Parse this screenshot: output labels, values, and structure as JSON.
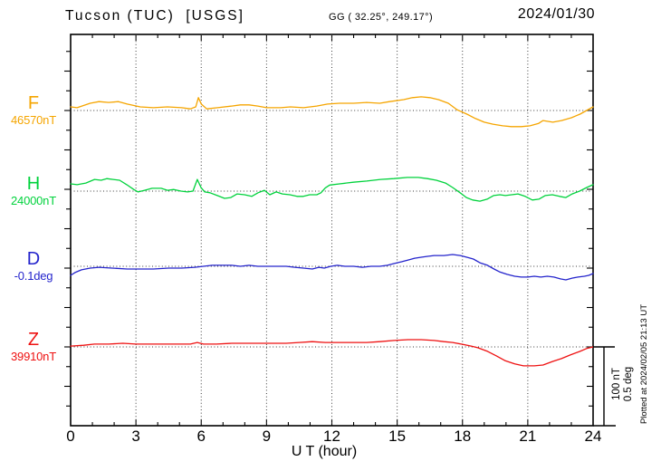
{
  "header": {
    "station_title": "Tucson (TUC)  [USGS]",
    "coordinates": "GG ( 32.25°, 249.17°)",
    "date": "2024/01/30"
  },
  "plot": {
    "x_label": "U T (hour)",
    "x_ticks": [
      "0",
      "3",
      "6",
      "9",
      "12",
      "15",
      "18",
      "21",
      "24"
    ],
    "scale_bar_nt": "100 nT",
    "scale_bar_deg": "0.5 deg",
    "plotted_note": "Plotted at 2024/02/05 21:13 UT",
    "colors": {
      "grid": "#3a3a3a",
      "axis": "#000000"
    }
  },
  "trace_labels": [
    {
      "id": "F",
      "letter": "F",
      "value": "46570nT",
      "color": "#f5a500"
    },
    {
      "id": "H",
      "letter": "H",
      "value": "24000nT",
      "color": "#00d23c"
    },
    {
      "id": "D",
      "letter": "D",
      "value": "-0.1deg",
      "color": "#2424cc"
    },
    {
      "id": "Z",
      "letter": "Z",
      "value": "39910nT",
      "color": "#ee1111"
    }
  ],
  "chart_data": {
    "type": "line",
    "title": "Tucson (TUC) [USGS] magnetogram, 2024/01/30",
    "xlabel": "U T (hour)",
    "xlim": [
      0,
      24
    ],
    "grid": "dotted vertical every 3 h, dotted baseline per trace",
    "legend_position": "left margin (F, H, D, Z)",
    "note": "points are [hour UT, offset from baseline]; baseline values shown in left margin; vertical scale 100 nT = 0.5 deg",
    "series": [
      {
        "name": "F",
        "unit": "nT",
        "baseline": 46570,
        "points": [
          [
            0,
            4.5
          ],
          [
            0.3,
            3.5
          ],
          [
            0.9,
            9
          ],
          [
            1.3,
            11
          ],
          [
            1.75,
            10
          ],
          [
            2.2,
            11
          ],
          [
            2.6,
            8
          ],
          [
            3.2,
            4.5
          ],
          [
            3.8,
            3.5
          ],
          [
            4.45,
            4.5
          ],
          [
            5.1,
            3.5
          ],
          [
            5.5,
            2
          ],
          [
            5.75,
            4.5
          ],
          [
            5.87,
            16
          ],
          [
            6.0,
            8
          ],
          [
            6.25,
            2
          ],
          [
            6.75,
            3.5
          ],
          [
            7.4,
            5.5
          ],
          [
            7.8,
            7
          ],
          [
            8.2,
            7
          ],
          [
            8.6,
            5.5
          ],
          [
            9.0,
            3.5
          ],
          [
            9.65,
            3.5
          ],
          [
            10.1,
            4.5
          ],
          [
            10.7,
            3.5
          ],
          [
            11.3,
            5.5
          ],
          [
            11.8,
            8
          ],
          [
            12.35,
            9
          ],
          [
            13.0,
            9
          ],
          [
            13.6,
            10
          ],
          [
            14.2,
            9
          ],
          [
            14.65,
            11
          ],
          [
            15.3,
            13.5
          ],
          [
            15.7,
            16
          ],
          [
            16.1,
            17
          ],
          [
            16.5,
            16
          ],
          [
            16.9,
            13.5
          ],
          [
            17.35,
            9
          ],
          [
            17.75,
            1
          ],
          [
            18.2,
            -4.5
          ],
          [
            18.6,
            -10
          ],
          [
            19.0,
            -14.5
          ],
          [
            19.4,
            -17
          ],
          [
            19.85,
            -19
          ],
          [
            20.25,
            -20
          ],
          [
            20.7,
            -20
          ],
          [
            21.1,
            -19
          ],
          [
            21.5,
            -16
          ],
          [
            21.7,
            -12.5
          ],
          [
            22.15,
            -14.5
          ],
          [
            22.55,
            -12.5
          ],
          [
            23.0,
            -9
          ],
          [
            23.4,
            -4.5
          ],
          [
            23.7,
            0
          ],
          [
            24,
            4.5
          ]
        ]
      },
      {
        "name": "H",
        "unit": "nT",
        "baseline": 24000,
        "points": [
          [
            0,
            9
          ],
          [
            0.3,
            8
          ],
          [
            0.7,
            10
          ],
          [
            1.1,
            14.5
          ],
          [
            1.4,
            13.5
          ],
          [
            1.66,
            15.5
          ],
          [
            1.95,
            14.5
          ],
          [
            2.25,
            13.5
          ],
          [
            2.58,
            8
          ],
          [
            2.9,
            2
          ],
          [
            3.1,
            -1
          ],
          [
            3.4,
            1
          ],
          [
            3.74,
            3.5
          ],
          [
            4.16,
            3.5
          ],
          [
            4.45,
            1
          ],
          [
            4.74,
            2
          ],
          [
            5.07,
            0
          ],
          [
            5.37,
            -1
          ],
          [
            5.62,
            0
          ],
          [
            5.82,
            14.5
          ],
          [
            5.99,
            4.5
          ],
          [
            6.16,
            -1
          ],
          [
            6.4,
            -2
          ],
          [
            6.74,
            -5.5
          ],
          [
            7.07,
            -9
          ],
          [
            7.36,
            -8
          ],
          [
            7.65,
            -3.5
          ],
          [
            7.99,
            -4.5
          ],
          [
            8.32,
            -6.5
          ],
          [
            8.61,
            -2
          ],
          [
            8.9,
            1
          ],
          [
            9.15,
            -4.5
          ],
          [
            9.44,
            -1
          ],
          [
            9.73,
            -3.5
          ],
          [
            10.07,
            -4.5
          ],
          [
            10.4,
            -6.5
          ],
          [
            10.69,
            -6.5
          ],
          [
            10.98,
            -4.5
          ],
          [
            11.31,
            -4.5
          ],
          [
            11.5,
            -2
          ],
          [
            11.7,
            4
          ],
          [
            11.9,
            7.5
          ],
          [
            12.35,
            9
          ],
          [
            12.98,
            11
          ],
          [
            13.6,
            12.5
          ],
          [
            14.23,
            14.5
          ],
          [
            14.85,
            15.5
          ],
          [
            15.47,
            17
          ],
          [
            15.97,
            17
          ],
          [
            16.39,
            15.5
          ],
          [
            16.8,
            13.5
          ],
          [
            17.22,
            10
          ],
          [
            17.55,
            4.5
          ],
          [
            17.89,
            -2
          ],
          [
            18.18,
            -8
          ],
          [
            18.47,
            -11
          ],
          [
            18.8,
            -12.5
          ],
          [
            19.13,
            -10
          ],
          [
            19.43,
            -5.5
          ],
          [
            19.72,
            -4.5
          ],
          [
            19.97,
            -5.5
          ],
          [
            20.26,
            -4.5
          ],
          [
            20.55,
            -3.5
          ],
          [
            20.88,
            -6.5
          ],
          [
            21.21,
            -11
          ],
          [
            21.51,
            -10
          ],
          [
            21.8,
            -5.5
          ],
          [
            22.13,
            -4.5
          ],
          [
            22.46,
            -6.5
          ],
          [
            22.75,
            -8
          ],
          [
            23.04,
            -3.5
          ],
          [
            23.38,
            0
          ],
          [
            23.71,
            4.5
          ],
          [
            24,
            8
          ]
        ]
      },
      {
        "name": "D",
        "unit": "deg",
        "baseline": -0.1,
        "points": [
          [
            0,
            -0.056
          ],
          [
            0.2,
            -0.039
          ],
          [
            0.5,
            -0.022
          ],
          [
            0.9,
            -0.011
          ],
          [
            1.3,
            -0.006
          ],
          [
            1.9,
            -0.011
          ],
          [
            2.6,
            -0.017
          ],
          [
            3.2,
            -0.017
          ],
          [
            3.8,
            -0.017
          ],
          [
            4.5,
            -0.011
          ],
          [
            5.1,
            -0.011
          ],
          [
            5.7,
            -0.006
          ],
          [
            6.1,
            0
          ],
          [
            6.5,
            0.006
          ],
          [
            7.0,
            0.006
          ],
          [
            7.4,
            0.006
          ],
          [
            7.8,
            0
          ],
          [
            8.2,
            0.006
          ],
          [
            8.6,
            0
          ],
          [
            9.0,
            0
          ],
          [
            9.4,
            0
          ],
          [
            9.9,
            0
          ],
          [
            10.3,
            -0.006
          ],
          [
            10.7,
            -0.011
          ],
          [
            11.1,
            -0.017
          ],
          [
            11.4,
            -0.006
          ],
          [
            11.65,
            -0.011
          ],
          [
            11.95,
            0
          ],
          [
            12.25,
            0.006
          ],
          [
            12.6,
            0
          ],
          [
            13.0,
            0
          ],
          [
            13.4,
            -0.006
          ],
          [
            13.8,
            0
          ],
          [
            14.2,
            0
          ],
          [
            14.55,
            0.006
          ],
          [
            14.85,
            0.017
          ],
          [
            15.2,
            0.028
          ],
          [
            15.5,
            0.039
          ],
          [
            15.8,
            0.05
          ],
          [
            16.1,
            0.056
          ],
          [
            16.4,
            0.062
          ],
          [
            16.7,
            0.067
          ],
          [
            17.15,
            0.067
          ],
          [
            17.55,
            0.073
          ],
          [
            17.9,
            0.067
          ],
          [
            18.2,
            0.056
          ],
          [
            18.5,
            0.045
          ],
          [
            18.8,
            0.022
          ],
          [
            19.15,
            0.006
          ],
          [
            19.45,
            -0.017
          ],
          [
            19.7,
            -0.034
          ],
          [
            20.05,
            -0.05
          ],
          [
            20.4,
            -0.062
          ],
          [
            20.7,
            -0.067
          ],
          [
            21.0,
            -0.067
          ],
          [
            21.3,
            -0.062
          ],
          [
            21.6,
            -0.067
          ],
          [
            21.9,
            -0.062
          ],
          [
            22.2,
            -0.067
          ],
          [
            22.5,
            -0.078
          ],
          [
            22.75,
            -0.084
          ],
          [
            23.05,
            -0.073
          ],
          [
            23.3,
            -0.067
          ],
          [
            23.6,
            -0.062
          ],
          [
            23.8,
            -0.056
          ],
          [
            24,
            -0.045
          ]
        ]
      },
      {
        "name": "Z",
        "unit": "nT",
        "baseline": 39910,
        "points": [
          [
            0,
            1
          ],
          [
            0.6,
            2
          ],
          [
            1.1,
            3.5
          ],
          [
            1.75,
            3.5
          ],
          [
            2.4,
            4.5
          ],
          [
            3.0,
            3.5
          ],
          [
            3.6,
            3.5
          ],
          [
            4.2,
            3.5
          ],
          [
            4.9,
            3.5
          ],
          [
            5.5,
            3.5
          ],
          [
            5.82,
            5.5
          ],
          [
            6.1,
            3.5
          ],
          [
            6.7,
            3.5
          ],
          [
            7.4,
            4.5
          ],
          [
            8.0,
            4.5
          ],
          [
            8.6,
            4.5
          ],
          [
            9.2,
            4.5
          ],
          [
            9.9,
            4.5
          ],
          [
            10.5,
            5.5
          ],
          [
            11.1,
            6.5
          ],
          [
            11.7,
            5.5
          ],
          [
            12.35,
            5.5
          ],
          [
            13.0,
            5.5
          ],
          [
            13.6,
            5.5
          ],
          [
            14.2,
            6.5
          ],
          [
            14.85,
            8
          ],
          [
            15.5,
            9
          ],
          [
            16.1,
            9
          ],
          [
            16.7,
            8
          ],
          [
            17.15,
            6.5
          ],
          [
            17.55,
            5.5
          ],
          [
            17.95,
            3.5
          ],
          [
            18.4,
            1
          ],
          [
            18.7,
            -1
          ],
          [
            19.15,
            -5.5
          ],
          [
            19.55,
            -11
          ],
          [
            19.95,
            -17
          ],
          [
            20.4,
            -21
          ],
          [
            20.8,
            -23.5
          ],
          [
            21.3,
            -23.5
          ],
          [
            21.7,
            -22.5
          ],
          [
            22.15,
            -18
          ],
          [
            22.55,
            -14.5
          ],
          [
            22.95,
            -10
          ],
          [
            23.4,
            -5.5
          ],
          [
            23.7,
            -2
          ],
          [
            24,
            0
          ]
        ]
      }
    ]
  }
}
